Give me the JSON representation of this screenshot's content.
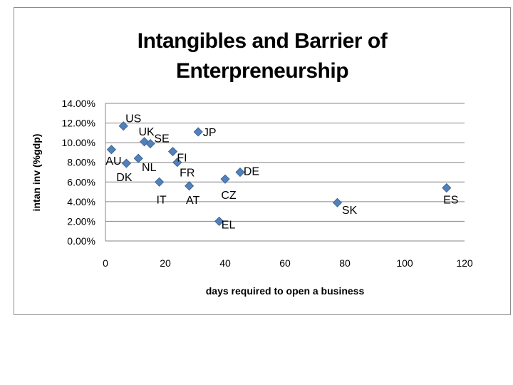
{
  "chart_data": {
    "type": "scatter",
    "title": "Intangibles and Barrier of\nEnterpreneurship",
    "xlabel": "days required to open a business",
    "ylabel": "intan inv (%gdp)",
    "xlim": [
      0,
      120
    ],
    "ylim": [
      0,
      14
    ],
    "x_ticks": [
      "0",
      "20",
      "40",
      "60",
      "80",
      "100",
      "120"
    ],
    "y_ticks": [
      "0.00%",
      "2.00%",
      "4.00%",
      "6.00%",
      "8.00%",
      "10.00%",
      "12.00%",
      "14.00%"
    ],
    "grid": "horizontal",
    "marker_color": "#4f81bd",
    "points": [
      {
        "label": "US",
        "x": 6,
        "y": 11.7
      },
      {
        "label": "UK",
        "x": 13,
        "y": 10.1
      },
      {
        "label": "SE",
        "x": 15,
        "y": 9.9
      },
      {
        "label": "JP",
        "x": 31,
        "y": 11.1
      },
      {
        "label": "AU",
        "x": 2,
        "y": 9.3
      },
      {
        "label": "FI",
        "x": 22.5,
        "y": 9.1
      },
      {
        "label": "NL",
        "x": 11,
        "y": 8.4
      },
      {
        "label": "DK",
        "x": 7,
        "y": 7.9
      },
      {
        "label": "FR",
        "x": 24,
        "y": 8.0
      },
      {
        "label": "DE",
        "x": 45,
        "y": 7.0
      },
      {
        "label": "CZ",
        "x": 40,
        "y": 6.3
      },
      {
        "label": "IT",
        "x": 18,
        "y": 6.0
      },
      {
        "label": "AT",
        "x": 28,
        "y": 5.6
      },
      {
        "label": "ES",
        "x": 114,
        "y": 5.4
      },
      {
        "label": "SK",
        "x": 77.5,
        "y": 3.9
      },
      {
        "label": "EL",
        "x": 38,
        "y": 2.0
      }
    ]
  }
}
